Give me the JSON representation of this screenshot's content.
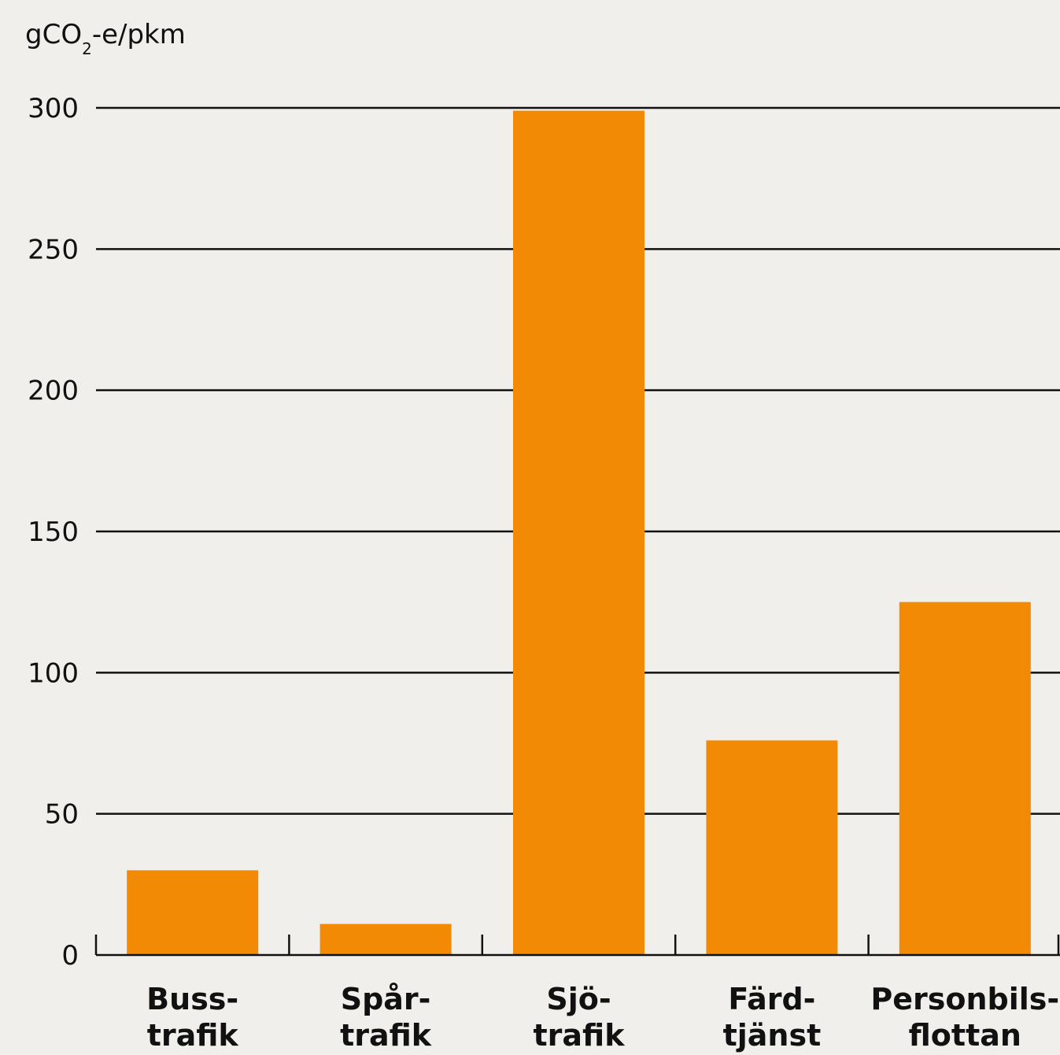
{
  "chart_data": {
    "type": "bar",
    "ylabel": {
      "prefix": "gCO",
      "subscript": "2",
      "suffix": "-e/pkm"
    },
    "categories": [
      [
        "Buss-",
        "trafik"
      ],
      [
        "Spår-",
        "trafik"
      ],
      [
        "Sjö-",
        "trafik"
      ],
      [
        "Färd-",
        "tjänst"
      ],
      [
        "Personbils-",
        "flottan"
      ]
    ],
    "values": [
      30,
      11,
      299,
      76,
      125
    ],
    "ylim": [
      0,
      300
    ],
    "yticks": [
      0,
      50,
      100,
      150,
      200,
      250,
      300
    ],
    "grid": true,
    "colors": {
      "bar": "#f28a05",
      "grid": "#111111",
      "background": "#f0efeb"
    }
  }
}
